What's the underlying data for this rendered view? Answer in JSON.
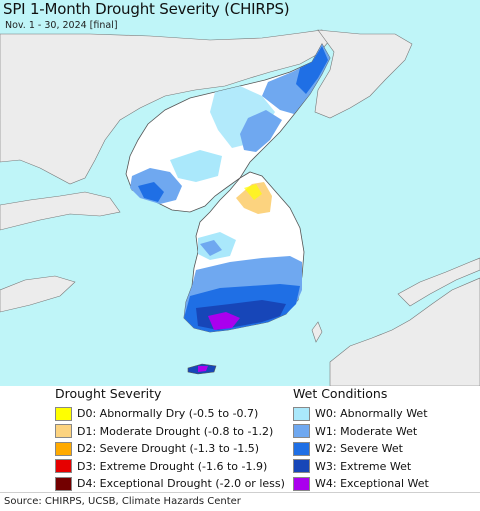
{
  "title": "SPI 1-Month Drought Severity (CHIRPS)",
  "subtitle": "Nov. 1 - 30, 2024 [final]",
  "colors": {
    "sea": "#bff5f8",
    "land_other": "#ececec",
    "land_normal": "#ffffff",
    "border": "#555555"
  },
  "legend": {
    "drought": {
      "heading": "Drought Severity",
      "items": [
        {
          "label": "D0: Abnormally Dry (-0.5 to -0.7)",
          "color": "#ffff00"
        },
        {
          "label": "D1: Moderate Drought (-0.8 to -1.2)",
          "color": "#fcd37f"
        },
        {
          "label": "D2: Severe Drought (-1.3 to -1.5)",
          "color": "#ffaa00"
        },
        {
          "label": "D3: Extreme Drought (-1.6 to -1.9)",
          "color": "#e60000"
        },
        {
          "label": "D4: Exceptional Drought (-2.0 or less)",
          "color": "#730000"
        }
      ]
    },
    "wet": {
      "heading": "Wet Conditions",
      "items": [
        {
          "label": "W0: Abnormally Wet",
          "color": "#aae8fb"
        },
        {
          "label": "W1: Moderate Wet",
          "color": "#6fa8f0"
        },
        {
          "label": "W2: Severe Wet",
          "color": "#1f6fe5"
        },
        {
          "label": "W3: Extreme Wet",
          "color": "#1746b8"
        },
        {
          "label": "W4: Exceptional Wet",
          "color": "#aa00ee"
        }
      ]
    }
  },
  "source": "Source: CHIRPS, UCSB, Climate Hazards Center"
}
